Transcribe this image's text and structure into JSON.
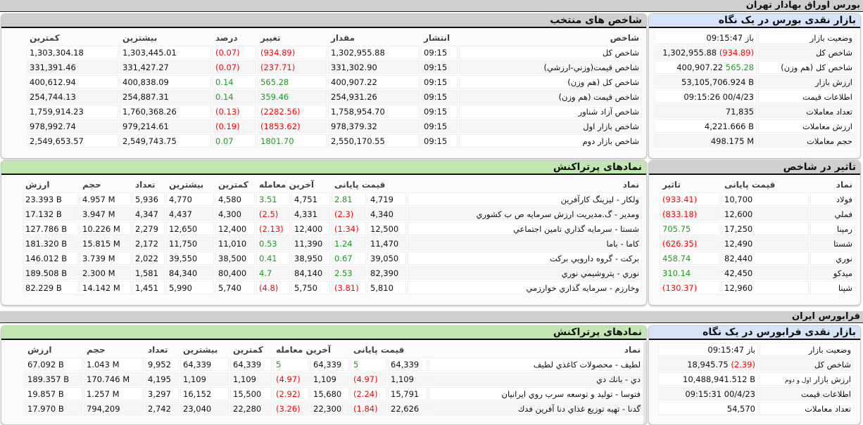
{
  "tse": {
    "title": "بورس اوراق بهادار تهران",
    "snapshot": {
      "title": "بازار نقدی بورس در یک نگاه",
      "rows": [
        {
          "label": "وضعیت بازار",
          "prefix": "باز",
          "value": "09:15:47"
        },
        {
          "label": "شاخص کل",
          "value": "1,302,955.88",
          "change": "(934.89)"
        },
        {
          "label": "شاخص کل (هم وزن)",
          "value": "400,907.22",
          "change": "565.28"
        },
        {
          "label": "ارزش بازار",
          "value": "53,105,706.924 B"
        },
        {
          "label": "اطلاعات قیمت",
          "value": "09:15:26 00/4/23"
        },
        {
          "label": "تعداد معاملات",
          "value": "71,835"
        },
        {
          "label": "ارزش معاملات",
          "value": "4,221.666 B"
        },
        {
          "label": "حجم معاملات",
          "value": "498.175 M"
        }
      ]
    },
    "indices": {
      "title": "شاخص های منتخب",
      "headers": [
        "شاخص",
        "انتشار",
        "مقدار",
        "تغییر",
        "درصد",
        "بیشترین",
        "کمترین"
      ],
      "rows": [
        [
          "شاخص کل",
          "09:15",
          "1,302,955.88",
          "(934.89)",
          "(0.07)",
          "1,303,445.01",
          "1,303,304.18"
        ],
        [
          "شاخص قیمت(وزني-ارزشي)",
          "09:15",
          "331,302.90",
          "(237.71)",
          "(0.07)",
          "331,427.27",
          "331,391.46"
        ],
        [
          "شاخص کل (هم وزن)",
          "09:15",
          "400,907.22",
          "565.28",
          "0.14",
          "400,838.09",
          "400,612.94"
        ],
        [
          "شاخص قیمت (هم وزن)",
          "09:15",
          "254,931.26",
          "359.46",
          "0.14",
          "254,887.31",
          "254,744.13"
        ],
        [
          "شاخص آزاد شناور",
          "09:15",
          "1,758,954.70",
          "(2282.56)",
          "(0.13)",
          "1,760,368.26",
          "1,759,914.23"
        ],
        [
          "شاخص بازار اول",
          "09:15",
          "978,379.32",
          "(1853.62)",
          "(0.19)",
          "979,214.61",
          "978,992.74"
        ],
        [
          "شاخص بازار دوم",
          "09:15",
          "2,550,170.55",
          "1801.70",
          "0.07",
          "2,549,743.75",
          "2,549,653.57"
        ]
      ]
    },
    "impact": {
      "title": "تاثیر در شاخص",
      "headers": [
        "نماد",
        "قیمت پایانی",
        "تاثیر"
      ],
      "rows": [
        [
          "فولاد",
          "10,700",
          "(933.41)"
        ],
        [
          "فملي",
          "12,600",
          "(833.18)"
        ],
        [
          "رمپنا",
          "17,250",
          "705.75"
        ],
        [
          "شستا",
          "12,490",
          "(626.35)"
        ],
        [
          "نوري",
          "82,440",
          "458.74"
        ],
        [
          "ميدکو",
          "42,450",
          "310.14"
        ],
        [
          "شپنا",
          "12,960",
          "(130.37)"
        ]
      ]
    },
    "hot": {
      "title": "نمادهای پرتراکنش",
      "headers": [
        "نماد",
        "قیمت پایانی",
        "آخرین معامله",
        "کمترین",
        "بیشترین",
        "تعداد",
        "حجم",
        "ارزش"
      ],
      "rows": [
        [
          "ولکار - ليزينگ کارآفرين",
          "4,719",
          "2.81",
          "4,751",
          "3.51",
          "4,580",
          "4,770",
          "5,936",
          "4.957 M",
          "23.393 B"
        ],
        [
          "ومدير - گ.مديريت ارزش سرمايه ص ب کشوري",
          "4,340",
          "(2.3)",
          "4,331",
          "(2.5)",
          "4,300",
          "4,437",
          "4,347",
          "3.947 M",
          "17.132 B"
        ],
        [
          "شستا - سرمايه گذاري تامين اجتماعي",
          "12,500",
          "(1.34)",
          "12,400",
          "(2.13)",
          "12,400",
          "12,650",
          "2,279",
          "10.226 M",
          "127.786 B"
        ],
        [
          "کاما - باما",
          "11,470",
          "1.24",
          "11,390",
          "0.53",
          "11,010",
          "11,750",
          "2,172",
          "15.815 M",
          "181.320 B"
        ],
        [
          "برکت - گروه دارويي برکت",
          "39,050",
          "0.67",
          "38,950",
          "0.41",
          "38,500",
          "39,550",
          "2,022",
          "3.739 M",
          "146.012 B"
        ],
        [
          "نوري - پتروشيمي نوري",
          "82,390",
          "2.53",
          "84,140",
          "4.7",
          "80,400",
          "84,340",
          "1,581",
          "2.300 M",
          "189.508 B"
        ],
        [
          "وخارزم - سرمايه گذاري خوارزمي",
          "5,810",
          "(3.81)",
          "5,750",
          "(4.8)",
          "5,740",
          "5,990",
          "1,451",
          "14.142 M",
          "82.229 B"
        ]
      ]
    }
  },
  "ifb": {
    "title": "فرابورس ایران",
    "snapshot": {
      "title": "بازار نقدی فرابورس در یک نگاه",
      "rows": [
        {
          "label": "وضعیت بازار",
          "prefix": "باز",
          "value": "09:15:47"
        },
        {
          "label": "شاخص کل",
          "value": "18,945.75",
          "change": "(2.39)"
        },
        {
          "label": "ارزش بازار",
          "sublabel": "اول و دوم",
          "value": "10,488,941.512 B"
        },
        {
          "label": "اطلاعات قیمت",
          "value": "09:15:31 00/4/23"
        },
        {
          "label": "تعداد معاملات",
          "value": "54,570"
        }
      ]
    },
    "hot": {
      "title": "نمادهای پرتراکنش",
      "headers": [
        "نماد",
        "قیمت پایانی",
        "آخرین معامله",
        "کمترین",
        "بیشترین",
        "تعداد",
        "حجم",
        "ارزش"
      ],
      "rows": [
        [
          "لطيف - محصولات کاغذي لطيف",
          "64,339",
          "5",
          "64,339",
          "5",
          "64,339",
          "64,339",
          "9,952",
          "1.043 M",
          "67.092 B"
        ],
        [
          "دي - بانك دي",
          "1,109",
          "(4.97)",
          "1,109",
          "(4.97)",
          "1,109",
          "1,109",
          "4,195",
          "170.746 M",
          "189.357 B"
        ],
        [
          "فتوسا - توليد و توسعه سرب روي ايرانيان",
          "15,791",
          "(2.24)",
          "15,680",
          "(2.92)",
          "15,500",
          "16,152",
          "3,297",
          "1.257 M",
          "19.857 B"
        ],
        [
          "گدنا - تهيه توزيع غذاي دنا آفرين فدك",
          "22,626",
          "(1.84)",
          "22,300",
          "(3.26)",
          "22,280",
          "23,040",
          "2,742",
          "794,209",
          "17.970 B"
        ]
      ]
    }
  },
  "colors": {
    "negative": "#ff0000",
    "positive": "#1c9a1c",
    "snapshot_header": "#d6e3f8",
    "hot_header": "#c2e6b0",
    "gray_header": "#cfcfcf"
  }
}
